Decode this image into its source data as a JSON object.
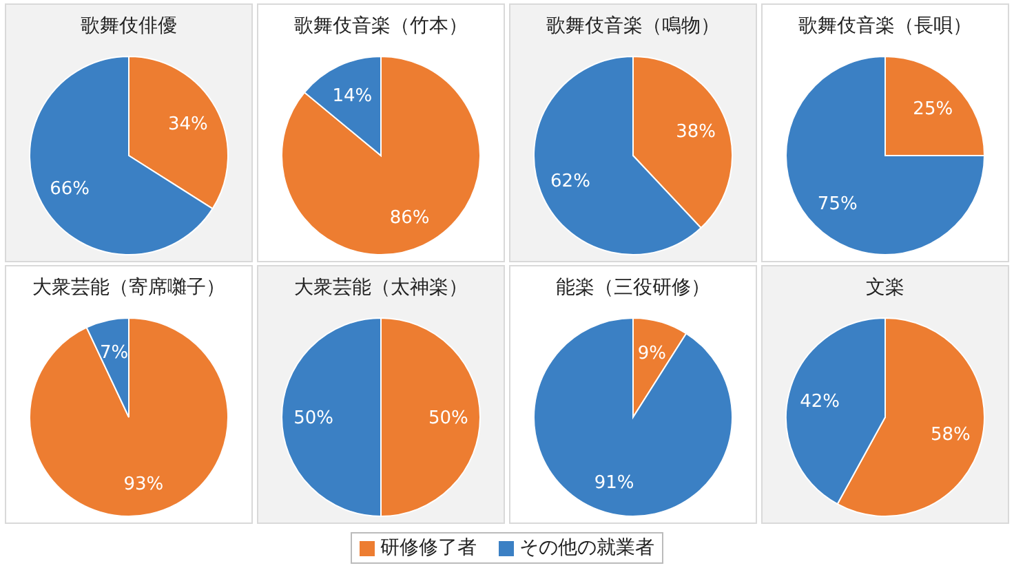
{
  "chart_data": [
    {
      "type": "pie",
      "title": "歌舞伎俳優",
      "categories": [
        "研修修了者",
        "その他の就業者"
      ],
      "values": [
        34,
        66
      ],
      "colors": [
        "#ed7d31",
        "#3b80c4"
      ],
      "value_labels": [
        "34%",
        "66%"
      ],
      "legend": "bottom"
    },
    {
      "type": "pie",
      "title": "歌舞伎音楽（竹本）",
      "values": [
        86,
        14
      ],
      "colors": [
        "#ed7d31",
        "#3b80c4"
      ],
      "value_labels": [
        "86%",
        "14%"
      ]
    },
    {
      "type": "pie",
      "title": "歌舞伎音楽（鳴物）",
      "values": [
        38,
        62
      ],
      "colors": [
        "#ed7d31",
        "#3b80c4"
      ],
      "value_labels": [
        "38%",
        "62%"
      ]
    },
    {
      "type": "pie",
      "title": "歌舞伎音楽（長唄）",
      "values": [
        25,
        75
      ],
      "colors": [
        "#ed7d31",
        "#3b80c4"
      ],
      "value_labels": [
        "25%",
        "75%"
      ]
    },
    {
      "type": "pie",
      "title": "大衆芸能（寄席囃子）",
      "values": [
        93,
        7
      ],
      "colors": [
        "#ed7d31",
        "#3b80c4"
      ],
      "value_labels": [
        "93%",
        "7%"
      ]
    },
    {
      "type": "pie",
      "title": "大衆芸能（太神楽）",
      "values": [
        50,
        50
      ],
      "colors": [
        "#ed7d31",
        "#3b80c4"
      ],
      "value_labels": [
        "50%",
        "50%"
      ]
    },
    {
      "type": "pie",
      "title": "能楽（三役研修）",
      "values": [
        9,
        91
      ],
      "colors": [
        "#ed7d31",
        "#3b80c4"
      ],
      "value_labels": [
        "9%",
        "91%"
      ]
    },
    {
      "type": "pie",
      "title": "文楽",
      "values": [
        58,
        42
      ],
      "colors": [
        "#ed7d31",
        "#3b80c4"
      ],
      "value_labels": [
        "58%",
        "42%"
      ]
    }
  ]
}
